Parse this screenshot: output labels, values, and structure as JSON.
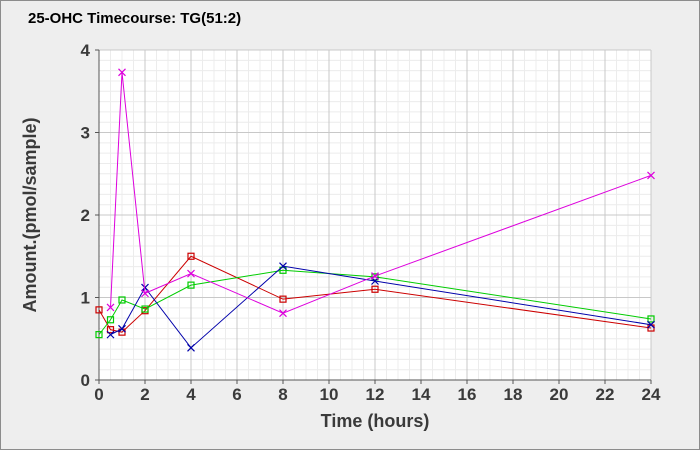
{
  "chart_data": {
    "type": "line",
    "title": "25-OHC Timecourse: TG(51:2)",
    "xlabel": "Time (hours)",
    "ylabel": "Amount.(pmol/sample)",
    "xlim": [
      0,
      24
    ],
    "ylim": [
      0,
      4
    ],
    "xticks": [
      0,
      2,
      4,
      6,
      8,
      10,
      12,
      14,
      16,
      18,
      20,
      22,
      24
    ],
    "yticks": [
      0,
      1,
      2,
      3,
      4
    ],
    "grid": true,
    "legend": "none",
    "series": [
      {
        "color": "#cc0000",
        "marker": "square",
        "points": [
          [
            0,
            0.85
          ],
          [
            0.5,
            0.61
          ],
          [
            1,
            0.58
          ],
          [
            2,
            0.84
          ],
          [
            4,
            1.5
          ],
          [
            8,
            0.98
          ],
          [
            12,
            1.1
          ],
          [
            24,
            0.63
          ]
        ]
      },
      {
        "color": "#00cc00",
        "marker": "square",
        "points": [
          [
            0,
            0.55
          ],
          [
            0.5,
            0.73
          ],
          [
            1,
            0.97
          ],
          [
            2,
            0.86
          ],
          [
            4,
            1.15
          ],
          [
            8,
            1.33
          ],
          [
            12,
            1.25
          ],
          [
            24,
            0.74
          ]
        ]
      },
      {
        "color": "#0000aa",
        "marker": "x",
        "points": [
          [
            0.5,
            0.55
          ],
          [
            1,
            0.62
          ],
          [
            2,
            1.12
          ],
          [
            4,
            0.39
          ],
          [
            8,
            1.38
          ],
          [
            12,
            1.2
          ],
          [
            24,
            0.67
          ]
        ]
      },
      {
        "color": "#dd00dd",
        "marker": "x",
        "points": [
          [
            0.5,
            0.88
          ],
          [
            1,
            3.73
          ],
          [
            2,
            1.05
          ],
          [
            4,
            1.29
          ],
          [
            8,
            0.81
          ],
          [
            12,
            1.26
          ],
          [
            24,
            2.48
          ]
        ]
      }
    ]
  }
}
